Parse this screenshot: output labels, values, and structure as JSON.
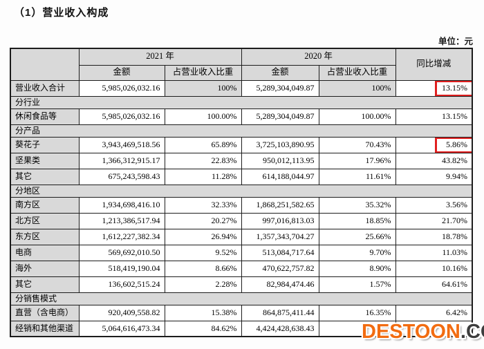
{
  "page": {
    "title": "（1）营业收入构成",
    "unit_label": "单位：元"
  },
  "table": {
    "headers": {
      "year_2021": "2021 年",
      "year_2020": "2020 年",
      "amount": "金额",
      "ratio": "占营业收入比重",
      "yoy": "同比增减"
    },
    "rows": [
      {
        "type": "data",
        "label": "营业收入合计",
        "cells": [
          "5,985,026,032.16",
          "100%",
          "5,289,304,049.87",
          "100%",
          "13.15%"
        ],
        "shaded_ratio": true,
        "highlight": true
      },
      {
        "type": "section",
        "label": "分行业"
      },
      {
        "type": "data",
        "label": "休闲食品等",
        "cells": [
          "5,985,026,032.16",
          "100.00%",
          "5,289,304,049.87",
          "100.00%",
          "13.15%"
        ]
      },
      {
        "type": "section",
        "label": "分产品"
      },
      {
        "type": "data",
        "label": "葵花子",
        "cells": [
          "3,943,469,518.56",
          "65.89%",
          "3,725,103,890.95",
          "70.43%",
          "5.86%"
        ],
        "highlight": true
      },
      {
        "type": "data",
        "label": "坚果类",
        "cells": [
          "1,366,312,915.17",
          "22.83%",
          "950,012,113.95",
          "17.96%",
          "43.82%"
        ]
      },
      {
        "type": "data",
        "label": "其它",
        "cells": [
          "675,243,598.43",
          "11.28%",
          "614,188,044.97",
          "11.61%",
          "9.94%"
        ]
      },
      {
        "type": "section",
        "label": "分地区"
      },
      {
        "type": "data",
        "label": "南方区",
        "cells": [
          "1,934,698,416.10",
          "32.33%",
          "1,868,251,582.65",
          "35.32%",
          "3.56%"
        ]
      },
      {
        "type": "data",
        "label": "北方区",
        "cells": [
          "1,213,386,517.94",
          "20.27%",
          "997,016,813.03",
          "18.85%",
          "21.70%"
        ]
      },
      {
        "type": "data",
        "label": "东方区",
        "cells": [
          "1,612,227,382.34",
          "26.94%",
          "1,357,343,704.27",
          "25.66%",
          "18.78%"
        ]
      },
      {
        "type": "data",
        "label": "电商",
        "cells": [
          "569,692,010.50",
          "9.52%",
          "513,084,717.64",
          "9.70%",
          "11.03%"
        ]
      },
      {
        "type": "data",
        "label": "海外",
        "cells": [
          "518,419,190.04",
          "8.66%",
          "470,622,757.82",
          "8.90%",
          "10.16%"
        ]
      },
      {
        "type": "data",
        "label": "其它",
        "cells": [
          "136,602,515.24",
          "2.28%",
          "82,984,474.46",
          "1.57%",
          "64.61%"
        ]
      },
      {
        "type": "section",
        "label": "分销售模式"
      },
      {
        "type": "data",
        "label": "直营（含电商）",
        "cells": [
          "920,409,558.82",
          "15.38%",
          "864,875,411.44",
          "16.35%",
          "6.42%"
        ]
      },
      {
        "type": "data",
        "label": "经销和其他渠道",
        "cells": [
          "5,064,616,473.34",
          "84.62%",
          "4,424,428,638.43",
          "",
          ""
        ]
      }
    ]
  },
  "watermark": {
    "brand": "DESTOON",
    "suffix": ".COM",
    "brand_color": "#f26c11",
    "suffix_color": "#3d3d3d"
  },
  "highlight_color": "#e02020"
}
